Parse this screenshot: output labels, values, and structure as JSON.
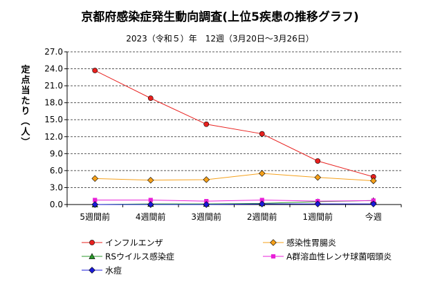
{
  "chart_data": {
    "type": "line",
    "title": "京都府感染症発生動向調査(上位5疾患の推移グラフ)",
    "subtitle": "2023（令和５）年　12週（3月20日～3月26日）",
    "ylabel": "定点当たり（人）",
    "xlabel": "",
    "ylim": [
      0,
      27
    ],
    "yticks": [
      "0.0",
      "3.0",
      "6.0",
      "9.0",
      "12.0",
      "15.0",
      "18.0",
      "21.0",
      "24.0",
      "27.0"
    ],
    "grid": true,
    "legend_position": "bottom",
    "categories": [
      "5週間前",
      "4週間前",
      "3週間前",
      "2週間前",
      "1週間前",
      "今週"
    ],
    "series": [
      {
        "name": "インフルエンザ",
        "color": "#e8201e",
        "marker": "circle",
        "values": [
          23.7,
          18.8,
          14.2,
          12.5,
          7.7,
          4.9
        ]
      },
      {
        "name": "感染性胃腸炎",
        "color": "#f5a01a",
        "marker": "diamond",
        "values": [
          4.6,
          4.3,
          4.4,
          5.5,
          4.8,
          4.2
        ]
      },
      {
        "name": "RSウイルス感染症",
        "color": "#2a9a2a",
        "marker": "triangle",
        "values": [
          0.0,
          0.1,
          0.1,
          0.2,
          0.5,
          0.7
        ]
      },
      {
        "name": "A群溶血性レンサ球菌咽頭炎",
        "color": "#e81fd8",
        "marker": "square",
        "values": [
          0.8,
          0.8,
          0.6,
          0.8,
          0.6,
          0.7
        ]
      },
      {
        "name": "水痘",
        "color": "#1a1ad8",
        "marker": "diamond",
        "values": [
          0.0,
          0.0,
          0.0,
          0.1,
          0.1,
          0.1
        ]
      }
    ]
  }
}
